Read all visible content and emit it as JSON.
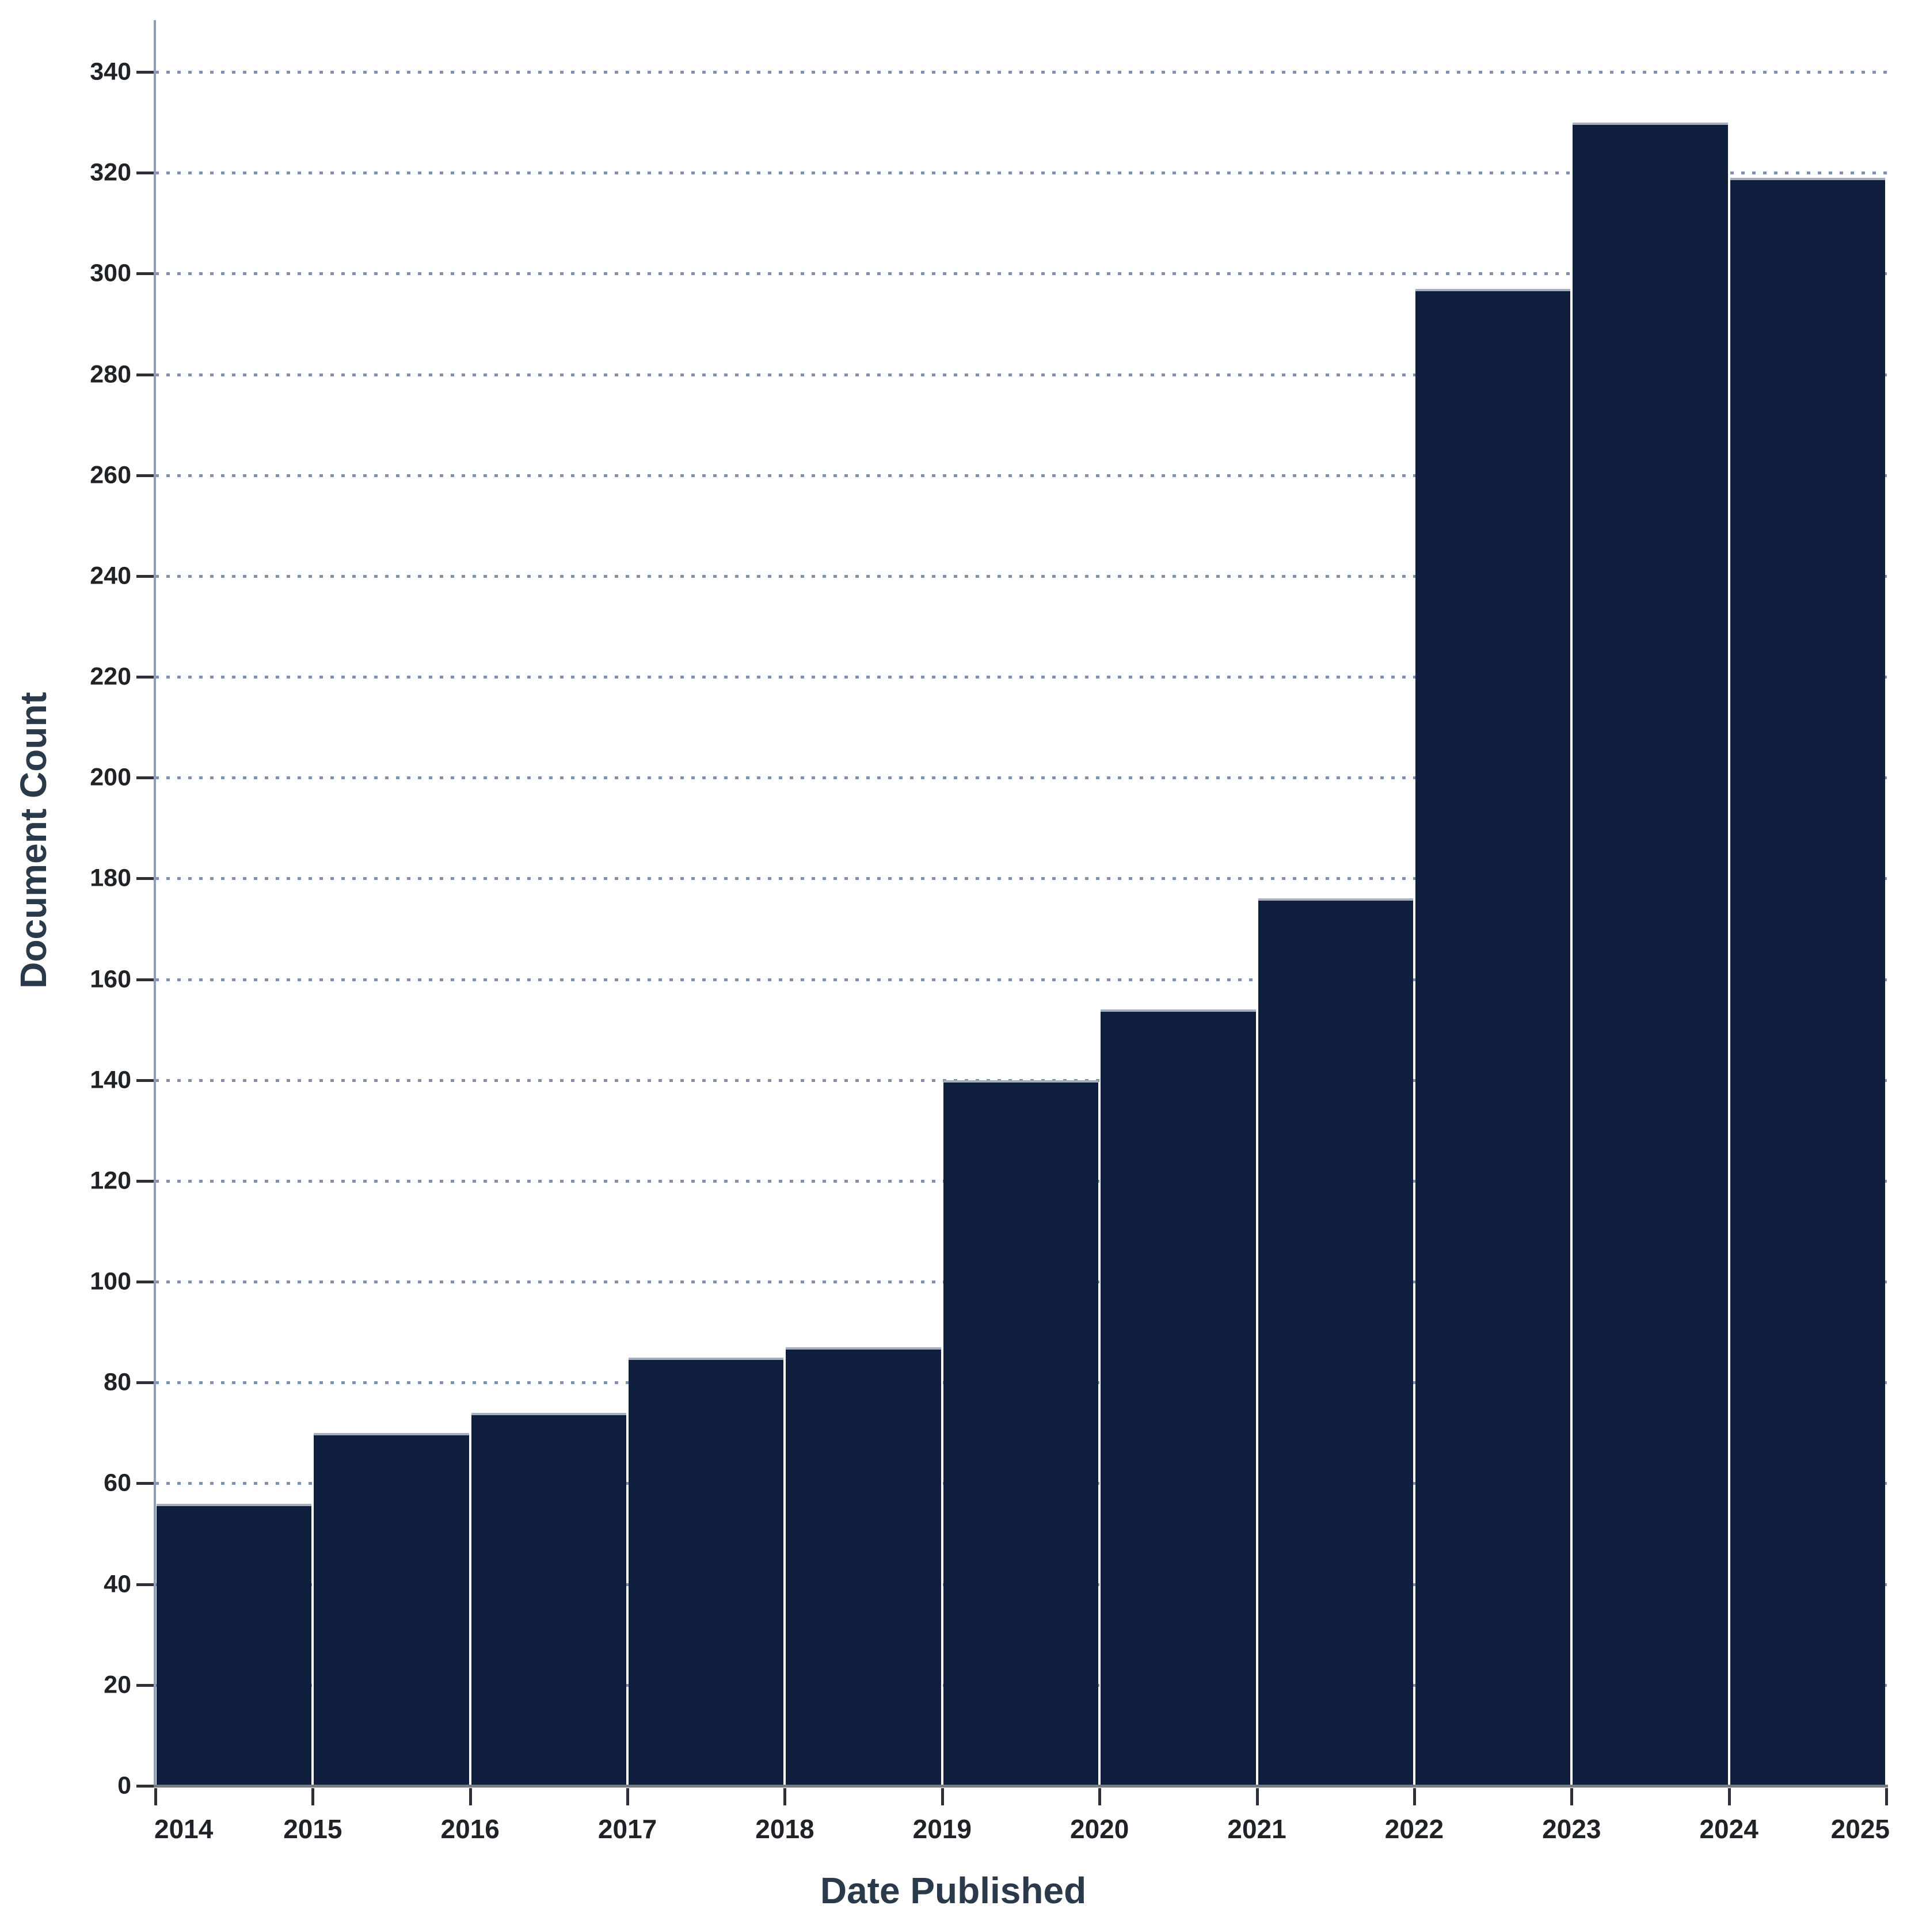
{
  "chart_data": {
    "type": "bar",
    "subtype": "date-histogram",
    "title": "",
    "xlabel": "Date Published",
    "ylabel": "Document Count",
    "categories": [
      "2014",
      "2015",
      "2016",
      "2017",
      "2018",
      "2019",
      "2020",
      "2021",
      "2022",
      "2023",
      "2024"
    ],
    "values": [
      56,
      70,
      74,
      85,
      87,
      140,
      154,
      176,
      297,
      330,
      319
    ],
    "x_tick_labels": [
      "2014",
      "2015",
      "2016",
      "2017",
      "2018",
      "2019",
      "2020",
      "2021",
      "2022",
      "2023",
      "2024",
      "2025"
    ],
    "y_tick_labels": [
      "0",
      "20",
      "40",
      "60",
      "80",
      "100",
      "120",
      "140",
      "160",
      "180",
      "200",
      "220",
      "240",
      "260",
      "280",
      "300",
      "320",
      "340"
    ],
    "ylim": [
      0,
      340
    ],
    "ytick_step": 20,
    "grid": "horizontal-dotted",
    "legend": "none",
    "colors": {
      "bar_fill": "#101f3d",
      "bar_top_stroke": "#a3aebf",
      "gridline": "#7e91ae",
      "y_axis_line": "#8e9fb5",
      "x_axis_line": "#757c85",
      "tick_mark": "#2d3137",
      "tick_label": "#1f2327",
      "axis_title": "#2b3a4b",
      "background": "#ffffff"
    }
  }
}
